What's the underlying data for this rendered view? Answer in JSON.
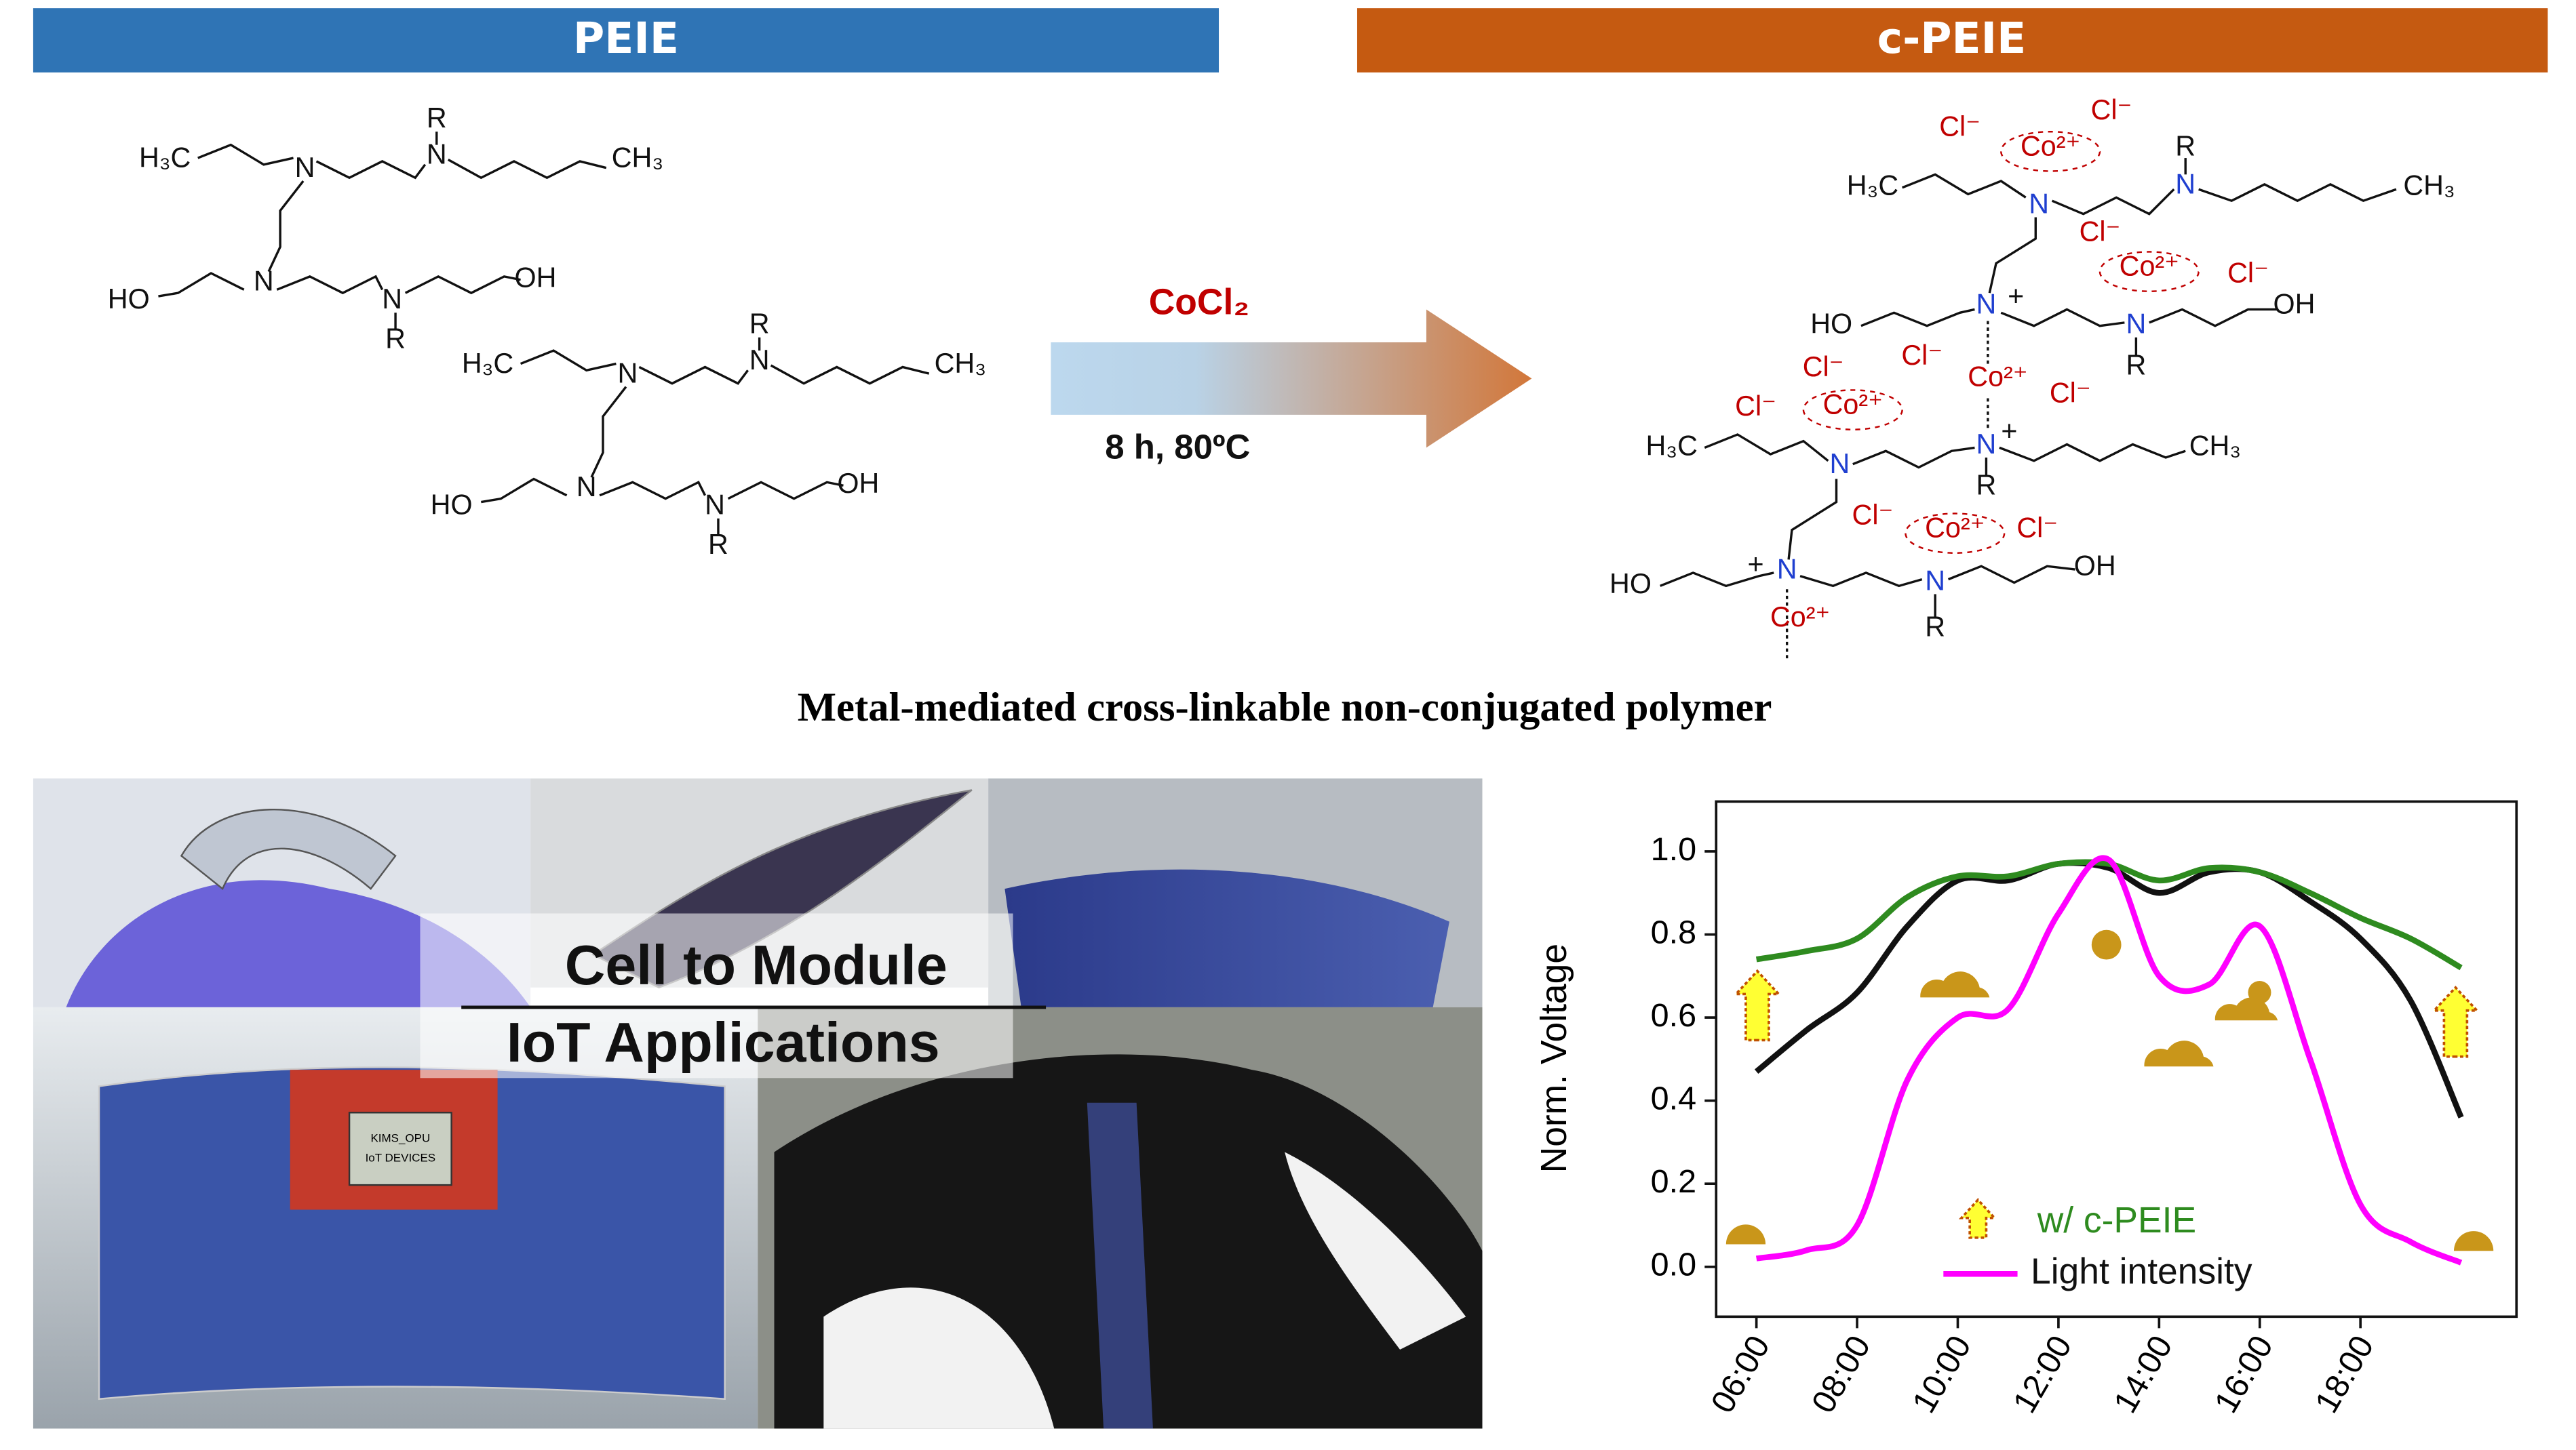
{
  "peie": {
    "title": "PEIE",
    "molecules": [
      {
        "atoms": [
          "H₃C",
          "N",
          "R",
          "N",
          "CH₃",
          "N",
          "HO",
          "N",
          "R",
          "OH"
        ]
      },
      {
        "atoms": [
          "H₃C",
          "N",
          "R",
          "N",
          "CH₃",
          "N",
          "HO",
          "N",
          "R",
          "OH"
        ]
      }
    ]
  },
  "reaction": {
    "reagent": "CoCl₂",
    "conditions": "8 h, 80ºC"
  },
  "c_peie": {
    "title": "c-PEIE",
    "atoms": [
      "Cl⁻",
      "Cl⁻",
      "Co²⁺",
      "H₃C",
      "N",
      "R",
      "N",
      "CH₃",
      "Cl⁻",
      "Co²⁺",
      "Cl⁻",
      "HO",
      "N",
      "+",
      "N",
      "R",
      "OH",
      "Cl⁻",
      "Cl⁻",
      "Co²⁺",
      "Cl⁻",
      "Cl⁻",
      "Co²⁺",
      "H₃C",
      "N",
      "N",
      "+",
      "R",
      "CH₃",
      "Cl⁻",
      "Co²⁺",
      "Cl⁻",
      "HO",
      "+",
      "N",
      "N",
      "R",
      "OH",
      "Co²⁺"
    ]
  },
  "caption": "Metal-mediated cross-linkable non-conjugated polymer",
  "photos": {
    "title_1": "Cell to Module",
    "title_2": "IoT Applications",
    "device_screen": [
      "KIMS_OPU",
      "IoT DEVICES"
    ]
  },
  "chart_data": {
    "type": "line",
    "y_label": "Norm. Voltage",
    "x": [
      6,
      7,
      8,
      9,
      10,
      11,
      12,
      13,
      14,
      15,
      16,
      17,
      18,
      19,
      20
    ],
    "xlim": [
      5.2,
      21.1
    ],
    "xticks": [
      {
        "value": 6,
        "label": "06:00"
      },
      {
        "value": 8,
        "label": "08:00"
      },
      {
        "value": 10,
        "label": "10:00"
      },
      {
        "value": 12,
        "label": "12:00"
      },
      {
        "value": 14,
        "label": "14:00"
      },
      {
        "value": 16,
        "label": "16:00"
      },
      {
        "value": 18,
        "label": "18:00"
      }
    ],
    "ylim": [
      -0.12,
      1.12
    ],
    "yticks": [
      {
        "value": 0,
        "label": "0.0"
      },
      0.2,
      0.4,
      0.6,
      0.8,
      {
        "value": 1,
        "label": "1.0"
      }
    ],
    "series": [
      {
        "color": "#111111",
        "values": [
          0.47,
          0.57,
          0.66,
          0.82,
          0.93,
          0.93,
          0.97,
          0.96,
          0.9,
          0.95,
          0.95,
          0.88,
          0.79,
          0.64,
          0.36
        ]
      },
      {
        "name": "w/ c-PEIE",
        "color": "#2e8b1f",
        "values": [
          0.74,
          0.76,
          0.79,
          0.89,
          0.94,
          0.94,
          0.97,
          0.97,
          0.93,
          0.96,
          0.95,
          0.9,
          0.84,
          0.79,
          0.72
        ]
      },
      {
        "name": "Light intensity",
        "color": "#ff00ff",
        "values": [
          0.02,
          0.04,
          0.1,
          0.45,
          0.6,
          0.62,
          0.85,
          0.98,
          0.7,
          0.68,
          0.82,
          0.5,
          0.15,
          0.06,
          0.01
        ]
      }
    ]
  }
}
